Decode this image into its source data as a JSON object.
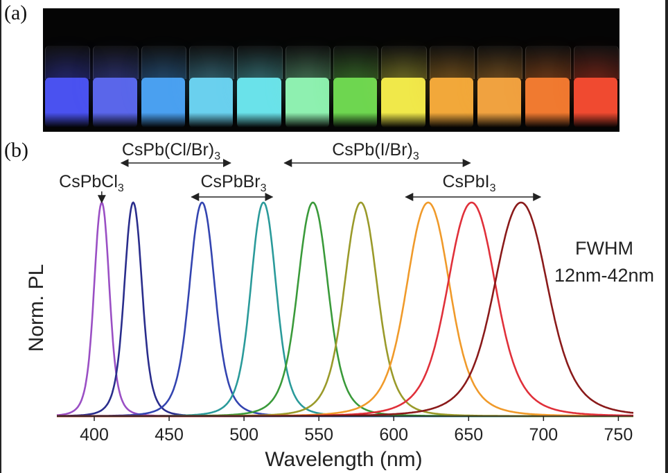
{
  "panel_a": {
    "label": "(a)",
    "vial_colors": [
      "#4a52f0",
      "#5a66ea",
      "#4aa0f0",
      "#6ad0ee",
      "#6ae2ea",
      "#8ef0b0",
      "#6ed650",
      "#f0e84a",
      "#f2a83a",
      "#f0a240",
      "#f07a30",
      "#f04a30"
    ]
  },
  "panel_b": {
    "label": "(b)",
    "chart_data": {
      "type": "line",
      "xlabel": "Wavelength (nm)",
      "ylabel": "Norm. PL",
      "xlim": [
        375,
        760
      ],
      "ylim": [
        0,
        1
      ],
      "xticks": [
        "400",
        "450",
        "500",
        "550",
        "600",
        "650",
        "700",
        "750"
      ],
      "xtick_values": [
        400,
        450,
        500,
        550,
        600,
        650,
        700,
        750
      ],
      "grid": false,
      "series": [
        {
          "peak": 405,
          "fwhm": 12,
          "color": "#9a4fc4"
        },
        {
          "peak": 426,
          "fwhm": 14,
          "color": "#2a2d8c"
        },
        {
          "peak": 472,
          "fwhm": 20,
          "color": "#3344b0"
        },
        {
          "peak": 513,
          "fwhm": 20,
          "color": "#2a9a9a"
        },
        {
          "peak": 546,
          "fwhm": 24,
          "color": "#3a9a3a"
        },
        {
          "peak": 578,
          "fwhm": 26,
          "color": "#9a9a2a"
        },
        {
          "peak": 623,
          "fwhm": 34,
          "color": "#f09a2a"
        },
        {
          "peak": 652,
          "fwhm": 38,
          "color": "#e0303a"
        },
        {
          "peak": 685,
          "fwhm": 42,
          "color": "#8a1a1a"
        }
      ],
      "annotations": [
        {
          "base": "CsPbCl",
          "sub": "3",
          "text": "CsPbCl3"
        },
        {
          "base": "CsPb(Cl/Br)",
          "sub": "3",
          "text": "CsPb(Cl/Br)3",
          "range": [
            418,
            491
          ]
        },
        {
          "base": "CsPbBr",
          "sub": "3",
          "text": "CsPbBr3",
          "range": [
            465,
            519
          ]
        },
        {
          "base": "CsPb(I/Br)",
          "sub": "3",
          "text": "CsPb(I/Br)3",
          "range": [
            527,
            651
          ]
        },
        {
          "base": "CsPbI",
          "sub": "3",
          "text": "CsPbI3",
          "range": [
            608,
            698
          ]
        }
      ],
      "fwhm_note": [
        "FWHM",
        "12nm-42nm"
      ]
    }
  }
}
